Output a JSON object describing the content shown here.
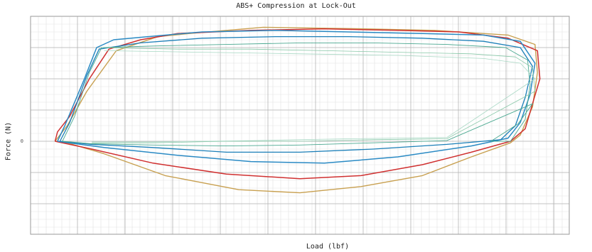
{
  "chart_data": {
    "type": "line",
    "title": "ABS+ Compression at Lock-Out",
    "xlabel": "Load (lbf)",
    "ylabel": "Force (N)",
    "x_ticks": [],
    "y_ticks": [
      "0"
    ],
    "grid": true,
    "legend": "none",
    "series": [
      {
        "color": "#c8a050",
        "values": [
          [
            -10,
            0
          ],
          [
            -9.8,
            0.2
          ],
          [
            -9.5,
            0.5
          ],
          [
            -8.7,
            1.6
          ],
          [
            -7.5,
            2.9
          ],
          [
            -5.8,
            3.35
          ],
          [
            -4.5,
            3.45
          ],
          [
            -1.5,
            3.65
          ],
          [
            2.5,
            3.6
          ],
          [
            5.5,
            3.55
          ],
          [
            8.5,
            3.4
          ],
          [
            9.6,
            3.1
          ],
          [
            9.7,
            2.2
          ],
          [
            9.5,
            1.1
          ],
          [
            9.0,
            0.2
          ],
          [
            8.6,
            -0.05
          ],
          [
            7,
            -0.5
          ],
          [
            5,
            -1.1
          ],
          [
            2.5,
            -1.45
          ],
          [
            0,
            -1.65
          ],
          [
            -2.5,
            -1.55
          ],
          [
            -5.5,
            -1.1
          ],
          [
            -8,
            -0.4
          ],
          [
            -9.5,
            -0.05
          ],
          [
            -10,
            0
          ]
        ]
      },
      {
        "color": "#d03030",
        "values": [
          [
            -10,
            0
          ],
          [
            -9.9,
            0.3
          ],
          [
            -9.4,
            0.8
          ],
          [
            -8.6,
            2.0
          ],
          [
            -7.8,
            2.95
          ],
          [
            -6.5,
            3.25
          ],
          [
            -5,
            3.45
          ],
          [
            -2,
            3.55
          ],
          [
            1,
            3.6
          ],
          [
            4,
            3.55
          ],
          [
            6.5,
            3.5
          ],
          [
            8.5,
            3.3
          ],
          [
            9.7,
            2.9
          ],
          [
            9.8,
            2.0
          ],
          [
            9.5,
            1.2
          ],
          [
            9.2,
            0.4
          ],
          [
            8.6,
            0
          ],
          [
            7,
            -0.35
          ],
          [
            5,
            -0.75
          ],
          [
            2.5,
            -1.1
          ],
          [
            0,
            -1.2
          ],
          [
            -3,
            -1.05
          ],
          [
            -6,
            -0.7
          ],
          [
            -8.5,
            -0.25
          ],
          [
            -10,
            0
          ]
        ]
      },
      {
        "color": "#2a8ac4",
        "values": [
          [
            -9.9,
            0
          ],
          [
            -9.6,
            0.5
          ],
          [
            -8.8,
            2.0
          ],
          [
            -8.3,
            3.0
          ],
          [
            -7.6,
            3.25
          ],
          [
            -6.2,
            3.35
          ],
          [
            -4,
            3.5
          ],
          [
            -1,
            3.55
          ],
          [
            2,
            3.5
          ],
          [
            5,
            3.45
          ],
          [
            7.5,
            3.4
          ],
          [
            9.0,
            3.2
          ],
          [
            9.6,
            2.5
          ],
          [
            9.4,
            1.5
          ],
          [
            9.0,
            0.6
          ],
          [
            8.5,
            0.1
          ],
          [
            7,
            -0.15
          ],
          [
            4,
            -0.5
          ],
          [
            1,
            -0.7
          ],
          [
            -2,
            -0.65
          ],
          [
            -5,
            -0.45
          ],
          [
            -8,
            -0.2
          ],
          [
            -9.9,
            0
          ]
        ]
      },
      {
        "color": "#1b7fb8",
        "values": [
          [
            -9.8,
            0
          ],
          [
            -9.4,
            0.6
          ],
          [
            -8.7,
            2.1
          ],
          [
            -8.2,
            2.95
          ],
          [
            -6.5,
            3.15
          ],
          [
            -4,
            3.3
          ],
          [
            -1,
            3.35
          ],
          [
            2,
            3.35
          ],
          [
            5,
            3.3
          ],
          [
            7.5,
            3.2
          ],
          [
            9.0,
            3.0
          ],
          [
            9.5,
            2.4
          ],
          [
            9.2,
            1.4
          ],
          [
            8.8,
            0.5
          ],
          [
            8.2,
            0.05
          ],
          [
            6,
            -0.1
          ],
          [
            3,
            -0.25
          ],
          [
            0,
            -0.35
          ],
          [
            -3,
            -0.35
          ],
          [
            -6,
            -0.2
          ],
          [
            -8.5,
            -0.1
          ],
          [
            -9.8,
            0
          ]
        ]
      },
      {
        "color": "#4aa890",
        "values": [
          [
            -9.7,
            0
          ],
          [
            -9.2,
            0.8
          ],
          [
            -8.6,
            2.2
          ],
          [
            -8.1,
            3.0
          ],
          [
            -6,
            3.05
          ],
          [
            -3,
            3.1
          ],
          [
            0,
            3.15
          ],
          [
            3,
            3.15
          ],
          [
            6,
            3.1
          ],
          [
            8.4,
            3.0
          ],
          [
            9.3,
            2.6
          ],
          [
            9.4,
            1.8
          ],
          [
            9.2,
            0.7
          ],
          [
            8.6,
            0.0
          ],
          [
            7.8,
            0
          ],
          [
            8.9,
            0.55
          ],
          [
            9.5,
            1.2
          ],
          [
            6,
            0.02
          ],
          [
            3,
            -0.05
          ],
          [
            0,
            -0.12
          ],
          [
            -3,
            -0.15
          ],
          [
            -6,
            -0.12
          ],
          [
            -8.5,
            -0.08
          ],
          [
            -9.7,
            0
          ]
        ]
      },
      {
        "color": "#88c8a8",
        "values": [
          [
            -8.1,
            3.0
          ],
          [
            -5,
            2.95
          ],
          [
            -2,
            2.95
          ],
          [
            1,
            2.9
          ],
          [
            4,
            2.85
          ],
          [
            7,
            2.8
          ],
          [
            8.8,
            2.7
          ],
          [
            9.5,
            2.35
          ],
          [
            9.6,
            1.6
          ],
          [
            6,
            0.08
          ],
          [
            3,
            0.05
          ],
          [
            0,
            0
          ],
          [
            -3,
            0
          ],
          [
            -6,
            -0.05
          ],
          [
            -8.5,
            -0.05
          ]
        ]
      },
      {
        "color": "#a8d8c4",
        "values": [
          [
            -8.0,
            2.9
          ],
          [
            -4,
            2.85
          ],
          [
            0,
            2.8
          ],
          [
            4,
            2.75
          ],
          [
            7.5,
            2.65
          ],
          [
            9.0,
            2.5
          ],
          [
            9.6,
            2.0
          ],
          [
            6,
            0.12
          ],
          [
            2,
            0.08
          ],
          [
            -2,
            0.02
          ],
          [
            -6,
            -0.02
          ],
          [
            -8.5,
            -0.02
          ]
        ]
      }
    ]
  }
}
